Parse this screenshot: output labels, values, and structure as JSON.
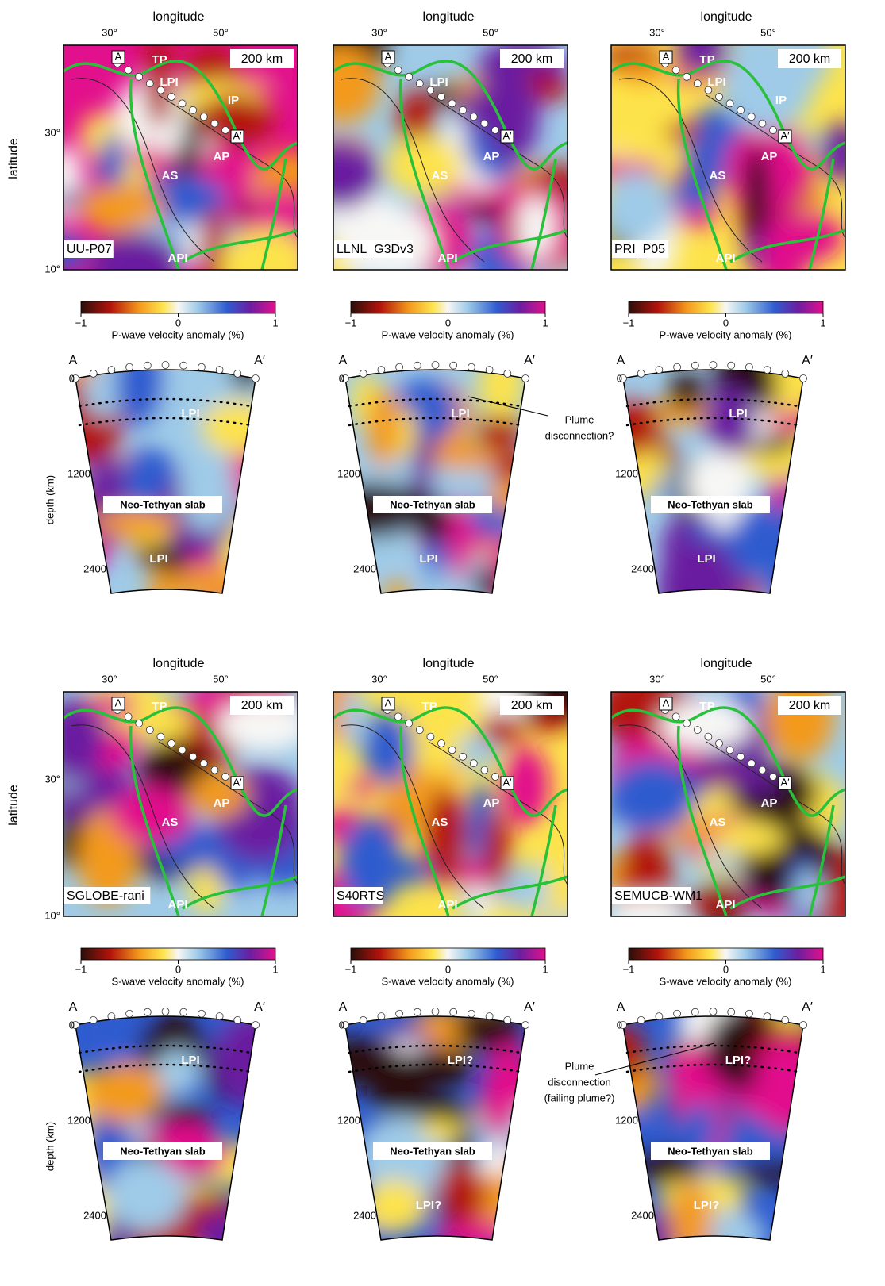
{
  "panels": [
    {
      "longitude_label": "longitude",
      "lon_ticks": [
        "30°",
        "50°"
      ],
      "lat_label": "latitude",
      "lat_ticks": [
        "30°",
        "10°"
      ],
      "model": "UU-P07",
      "depth": "200 km",
      "map_labels": {
        "start": "A",
        "end": "A′",
        "tp": "TP",
        "lpi": "LPI",
        "ip": "IP",
        "ap": "AP",
        "as": "AS",
        "api": "API"
      },
      "colorbar": {
        "ticks": [
          "−1",
          "0",
          "1"
        ],
        "label": "P-wave velocity anomaly (%)"
      },
      "section": {
        "start": "A",
        "end": "A′",
        "depth_ticks": [
          "0",
          "1200",
          "2400"
        ],
        "depth_label": "depth (km)",
        "upper": "LPI",
        "slab": "Neo-Tethyan slab",
        "lower": "LPI"
      }
    },
    {
      "longitude_label": "longitude",
      "lon_ticks": [
        "30°",
        "50°"
      ],
      "model": "LLNL_G3Dv3",
      "depth": "200 km",
      "map_labels": {
        "start": "A",
        "end": "A′",
        "lpi": "LPI",
        "ap": "AP",
        "as": "AS",
        "api": "API"
      },
      "colorbar": {
        "ticks": [
          "−1",
          "0",
          "1"
        ],
        "label": "P-wave velocity anomaly (%)"
      },
      "section": {
        "start": "A",
        "end": "A′",
        "depth_ticks": [
          "0",
          "1200",
          "2400"
        ],
        "upper": "LPI",
        "slab": "Neo-Tethyan slab",
        "lower": "LPI",
        "note": [
          "Plume",
          "disconnection?"
        ]
      }
    },
    {
      "longitude_label": "longitude",
      "lon_ticks": [
        "30°",
        "50°"
      ],
      "model": "PRI_P05",
      "depth": "200 km",
      "map_labels": {
        "start": "A",
        "end": "A′",
        "tp": "TP",
        "lpi": "LPI",
        "ip": "IP",
        "ap": "AP",
        "as": "AS",
        "api": "API"
      },
      "colorbar": {
        "ticks": [
          "−1",
          "0",
          "1"
        ],
        "label": "P-wave velocity anomaly (%)"
      },
      "section": {
        "start": "A",
        "end": "A′",
        "depth_ticks": [
          "0",
          "1200",
          "2400"
        ],
        "upper": "LPI",
        "slab": "Neo-Tethyan slab",
        "lower": "LPI"
      }
    },
    {
      "longitude_label": "longitude",
      "lon_ticks": [
        "30°",
        "50°"
      ],
      "lat_label": "latitude",
      "lat_ticks": [
        "30°",
        "10°"
      ],
      "model": "SGLOBE-rani",
      "depth": "200 km",
      "map_labels": {
        "start": "A",
        "end": "A′",
        "tp": "TP",
        "ap": "AP",
        "as": "AS",
        "api": "API"
      },
      "colorbar": {
        "ticks": [
          "−1",
          "0",
          "1"
        ],
        "label": "S-wave velocity anomaly (%)"
      },
      "section": {
        "start": "A",
        "end": "A′",
        "depth_ticks": [
          "0",
          "1200",
          "2400"
        ],
        "depth_label": "depth (km)",
        "upper": "LPI",
        "slab": "Neo-Tethyan slab"
      }
    },
    {
      "longitude_label": "longitude",
      "lon_ticks": [
        "30°",
        "50°"
      ],
      "model": "S40RTS",
      "depth": "200 km",
      "map_labels": {
        "start": "A",
        "end": "A′",
        "tp": "TP",
        "ap": "AP",
        "as": "AS",
        "api": "API"
      },
      "colorbar": {
        "ticks": [
          "−1",
          "0",
          "1"
        ],
        "label": "S-wave velocity anomaly (%)"
      },
      "section": {
        "start": "A",
        "end": "A′",
        "depth_ticks": [
          "0",
          "1200",
          "2400"
        ],
        "upper": "LPI?",
        "slab": "Neo-Tethyan slab",
        "lower": "LPI?"
      }
    },
    {
      "longitude_label": "longitude",
      "lon_ticks": [
        "30°",
        "50°"
      ],
      "model": "SEMUCB-WM1",
      "depth": "200 km",
      "map_labels": {
        "start": "A",
        "end": "A′",
        "tp": "TP",
        "ap": "AP",
        "as": "AS",
        "api": "API"
      },
      "colorbar": {
        "ticks": [
          "−1",
          "0",
          "1"
        ],
        "label": "S-wave velocity anomaly (%)"
      },
      "section": {
        "start": "A",
        "end": "A′",
        "depth_ticks": [
          "0",
          "1200",
          "2400"
        ],
        "upper": "LPI?",
        "slab": "Neo-Tethyan slab",
        "lower": "LPI?",
        "note": [
          "Plume",
          "disconnection",
          "(failing plume?)"
        ]
      }
    }
  ]
}
